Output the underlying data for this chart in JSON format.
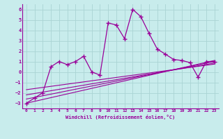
{
  "xlabel": "Windchill (Refroidissement éolien,°C)",
  "bg_color": "#c8ecec",
  "grid_color": "#aad4d4",
  "line_color": "#990099",
  "xlim": [
    -0.5,
    23.5
  ],
  "ylim": [
    -3.5,
    6.5
  ],
  "yticks": [
    -3,
    -2,
    -1,
    0,
    1,
    2,
    3,
    4,
    5,
    6
  ],
  "xticks": [
    0,
    1,
    2,
    3,
    4,
    5,
    6,
    7,
    8,
    9,
    10,
    11,
    12,
    13,
    14,
    15,
    16,
    17,
    18,
    19,
    20,
    21,
    22,
    23
  ],
  "main_x": [
    0,
    1,
    2,
    3,
    4,
    5,
    6,
    7,
    8,
    9,
    10,
    11,
    12,
    13,
    14,
    15,
    16,
    17,
    18,
    19,
    20,
    21,
    22,
    23
  ],
  "main_y": [
    -3.0,
    -2.5,
    -2.0,
    0.5,
    1.0,
    0.7,
    1.0,
    1.5,
    0.0,
    -0.3,
    4.7,
    4.5,
    3.2,
    6.0,
    5.3,
    3.7,
    2.2,
    1.7,
    1.2,
    1.1,
    0.9,
    -0.5,
    1.0,
    1.0
  ],
  "line1_x": [
    0,
    23
  ],
  "line1_y": [
    -3.0,
    1.1
  ],
  "line2_x": [
    0,
    23
  ],
  "line2_y": [
    -2.6,
    1.0
  ],
  "line3_x": [
    0,
    23
  ],
  "line3_y": [
    -2.2,
    0.85
  ],
  "line4_x": [
    0,
    23
  ],
  "line4_y": [
    -1.7,
    0.75
  ]
}
